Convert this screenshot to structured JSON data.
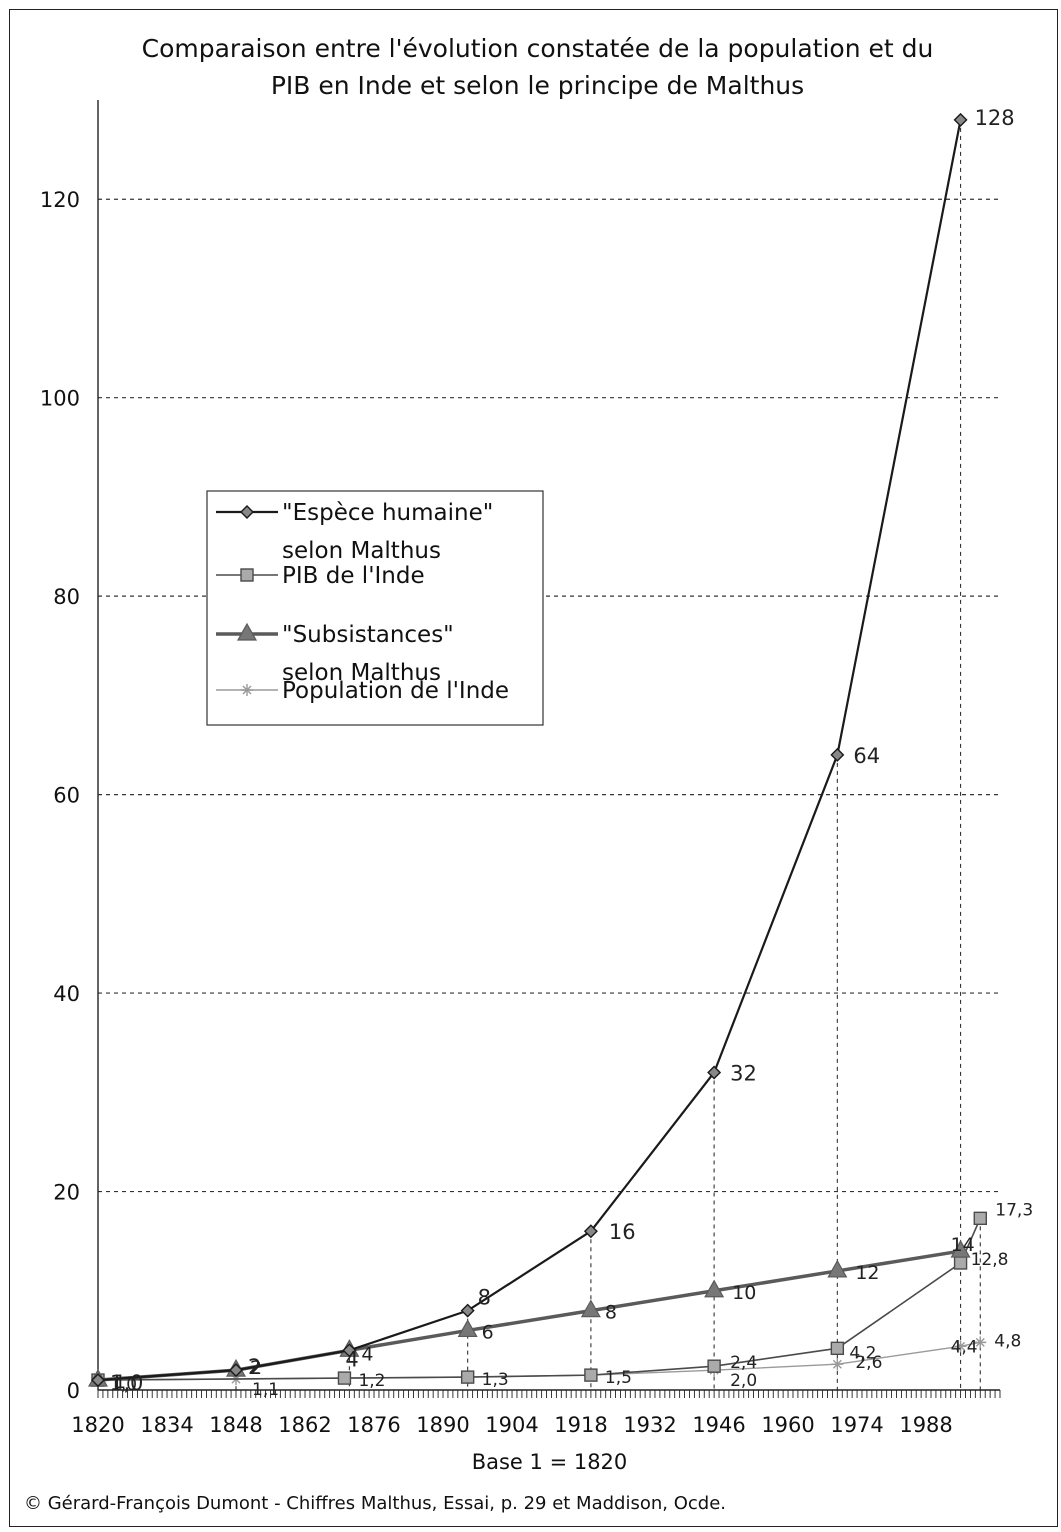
{
  "title_lines": [
    "Comparaison entre l'évolution constatée de la population et du",
    "PIB en Inde et selon le principe de Malthus"
  ],
  "xlabel": "Base 1 = 1820",
  "credit": "© Gérard-François Dumont - Chiffres Malthus, Essai, p. 29 et Maddison, Ocde.",
  "chart_data": {
    "type": "line",
    "title": "Comparaison entre l'évolution constatée de la population et du PIB en Inde et selon le principe de Malthus",
    "xlabel": "Base 1 = 1820",
    "ylabel": "",
    "x_ticks": [
      1820,
      1834,
      1848,
      1862,
      1876,
      1890,
      1904,
      1918,
      1932,
      1946,
      1960,
      1974,
      1988
    ],
    "xlim": [
      1820,
      2003
    ],
    "y_ticks": [
      0,
      20,
      40,
      60,
      80,
      100,
      120
    ],
    "ylim": [
      0,
      130
    ],
    "grid": true,
    "legend_position": "center-left",
    "series": [
      {
        "name": "\"Espèce humaine\" selon Malthus",
        "marker": "diamond",
        "color": "#1a1a1a",
        "points": [
          [
            1820,
            1
          ],
          [
            1848,
            2
          ],
          [
            1871,
            4
          ],
          [
            1895,
            8
          ],
          [
            1920,
            16
          ],
          [
            1945,
            32
          ],
          [
            1970,
            64
          ],
          [
            1995,
            128
          ]
        ],
        "labels": [
          "1,0",
          "2",
          "4",
          "8",
          "16",
          "32",
          "64",
          "128"
        ]
      },
      {
        "name": "PIB de l'Inde",
        "marker": "square",
        "color": "#4a4a4a",
        "points": [
          [
            1820,
            1.0
          ],
          [
            1870,
            1.2
          ],
          [
            1895,
            1.3
          ],
          [
            1920,
            1.5
          ],
          [
            1945,
            2.4
          ],
          [
            1970,
            4.2
          ],
          [
            1995,
            12.8
          ],
          [
            1999,
            17.3
          ]
        ],
        "labels": [
          "1,0",
          "1,2",
          "1,3",
          "1,5",
          "2,4",
          "4,2",
          "12,8",
          "17,3"
        ]
      },
      {
        "name": "\"Subsistances\" selon Malthus",
        "marker": "triangle",
        "color": "#5a5a5a",
        "points": [
          [
            1820,
            1
          ],
          [
            1848,
            2
          ],
          [
            1871,
            4
          ],
          [
            1895,
            6
          ],
          [
            1920,
            8
          ],
          [
            1945,
            10
          ],
          [
            1970,
            12
          ],
          [
            1995,
            14
          ]
        ],
        "labels": [
          "1",
          "2",
          "4",
          "6",
          "8",
          "10",
          "12",
          "14"
        ]
      },
      {
        "name": "Population de l'Inde",
        "marker": "star",
        "color": "#9a9a9a",
        "points": [
          [
            1820,
            1.0
          ],
          [
            1848,
            1.1
          ],
          [
            1870,
            1.2
          ],
          [
            1895,
            1.3
          ],
          [
            1920,
            1.5
          ],
          [
            1945,
            2.0
          ],
          [
            1970,
            2.6
          ],
          [
            1995,
            4.4
          ],
          [
            1999,
            4.8
          ]
        ],
        "labels": [
          "",
          "1,1",
          "",
          "",
          "",
          "2,0",
          "2,6",
          "4,4",
          "4,8"
        ]
      }
    ]
  }
}
